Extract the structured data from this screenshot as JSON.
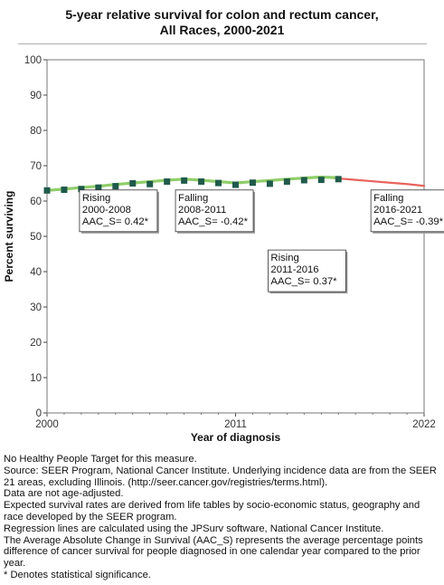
{
  "title_line1": "5-year relative survival for colon and rectum cancer,",
  "title_line2": "All Races,  2000-2021",
  "chart_data": {
    "type": "line",
    "ylabel": "Percent surviving",
    "xlabel": "Year of diagnosis",
    "xlim": [
      2000,
      2022
    ],
    "ylim": [
      0,
      100
    ],
    "x_ticks": [
      "2000",
      "2011",
      "2022"
    ],
    "x_tick_values": [
      2000,
      2011,
      2022
    ],
    "y_ticks": [
      "0",
      "10",
      "20",
      "30",
      "40",
      "50",
      "60",
      "70",
      "80",
      "90",
      "100"
    ],
    "series": [
      {
        "type": "observed",
        "color": "#1f5a4a",
        "x": [
          2000,
          2001,
          2002,
          2003,
          2004,
          2005,
          2006,
          2007,
          2008,
          2009,
          2010,
          2011,
          2012,
          2013,
          2014,
          2015,
          2016,
          2017
        ],
        "y": [
          63.0,
          63.2,
          63.4,
          63.8,
          64.2,
          65.0,
          64.8,
          65.5,
          65.8,
          65.5,
          65.1,
          64.6,
          65.2,
          64.9,
          65.5,
          65.9,
          66.0,
          66.2
        ]
      },
      {
        "type": "fitted",
        "color": "#e8635e",
        "x": [
          2000,
          2001,
          2002,
          2003,
          2004,
          2005,
          2006,
          2007,
          2008,
          2009,
          2010,
          2011,
          2012,
          2013,
          2014,
          2015,
          2016,
          2017,
          2018,
          2019,
          2020,
          2021,
          2022
        ],
        "y": [
          63.0,
          63.4,
          63.8,
          64.2,
          64.7,
          65.1,
          65.5,
          65.9,
          66.2,
          65.9,
          65.5,
          65.1,
          65.5,
          65.8,
          66.2,
          66.5,
          66.8,
          66.4,
          66.0,
          65.6,
          65.2,
          64.8,
          64.3
        ]
      },
      {
        "type": "highlight",
        "color": "#8fce6a",
        "x": [
          2000,
          2001,
          2002,
          2003,
          2004,
          2005,
          2006,
          2007,
          2008,
          2009,
          2010,
          2011,
          2012,
          2013,
          2014,
          2015,
          2016,
          2017
        ],
        "y": [
          63.0,
          63.4,
          63.8,
          64.2,
          64.7,
          65.1,
          65.5,
          65.9,
          66.2,
          65.9,
          65.5,
          65.1,
          65.5,
          65.8,
          66.2,
          66.5,
          66.8,
          66.6
        ]
      }
    ],
    "annotations": [
      {
        "lines": [
          "Rising",
          "2000-2008",
          "AAC_S=  0.42*"
        ],
        "x": 2002,
        "y": 58
      },
      {
        "lines": [
          "Falling",
          "2008-2011",
          "AAC_S= -0.42*"
        ],
        "x": 2007.6,
        "y": 58
      },
      {
        "lines": [
          "Rising",
          "2011-2016",
          "AAC_S=  0.37*"
        ],
        "x": 2013,
        "y": 41
      },
      {
        "lines": [
          "Falling",
          "2016-2021",
          "AAC_S= -0.39*"
        ],
        "x": 2019,
        "y": 58
      }
    ]
  },
  "footnotes": [
    "No Healthy People Target for this measure.",
    "Source: SEER Program, National Cancer Institute. Underlying incidence data are from the SEER 21 areas, excluding Illinois. (http://seer.cancer.gov/registries/terms.html).",
    "Data are not age-adjusted.",
    "Expected survival rates are derived from life tables by socio-economic status, geography and race developed by the SEER program.",
    "Regression lines are calculated using the JPSurv software, National Cancer Institute.",
    "The Average Absolute Change in Survival (AAC_S) represents the average percentage points difference of cancer survival for people diagnosed in one calendar year compared to the prior year.",
    "* Denotes statistical significance."
  ]
}
